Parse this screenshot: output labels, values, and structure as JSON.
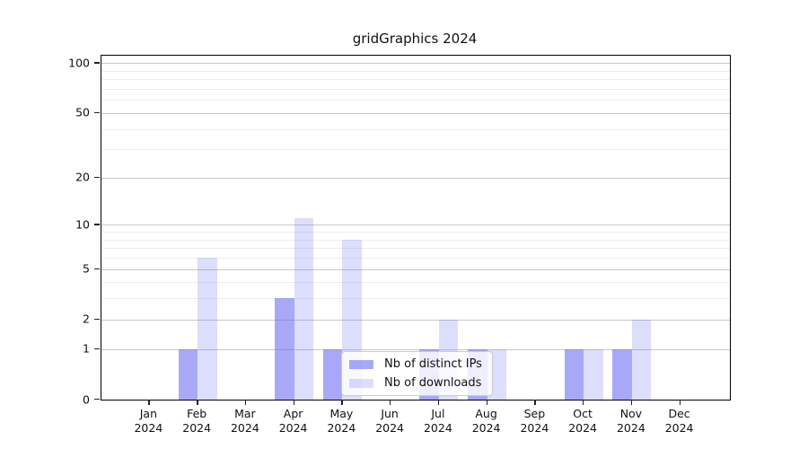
{
  "title": "gridGraphics 2024",
  "chart_data": {
    "type": "bar",
    "title": "gridGraphics 2024",
    "categories": [
      "Jan 2024",
      "Feb 2024",
      "Mar 2024",
      "Apr 2024",
      "May 2024",
      "Jun 2024",
      "Jul 2024",
      "Aug 2024",
      "Sep 2024",
      "Oct 2024",
      "Nov 2024",
      "Dec 2024"
    ],
    "series": [
      {
        "name": "Nb of distinct IPs",
        "values": [
          0,
          1,
          0,
          3,
          1,
          0,
          1,
          1,
          0,
          1,
          1,
          0
        ],
        "color": "rgba(102,102,245,0.57)"
      },
      {
        "name": "Nb of downloads",
        "values": [
          0,
          6,
          0,
          11,
          8,
          0,
          2,
          1,
          0,
          1,
          2,
          0
        ],
        "color": "rgba(102,102,245,0.22)"
      }
    ],
    "xlabel": "",
    "ylabel": "",
    "y_scale": "log1p",
    "y_ticks": [
      0,
      1,
      2,
      5,
      10,
      20,
      50,
      100
    ],
    "y_minor_gridlines": [
      3,
      4,
      6,
      7,
      8,
      9,
      30,
      40,
      60,
      70,
      80,
      90
    ],
    "ylim": [
      0,
      111
    ],
    "grid": "horizontal",
    "legend_position": "lower-center-inside",
    "bar_mode": "grouped"
  },
  "colors": {
    "spine": "#000000",
    "major_grid": "#c9c9c9",
    "minor_grid": "#ededed",
    "series_dark": "rgba(102,102,245,0.57)",
    "series_light": "rgba(102,102,245,0.22)"
  },
  "legend": {
    "items": [
      {
        "label": "Nb of distinct IPs",
        "color": "rgba(102,102,245,0.57)"
      },
      {
        "label": "Nb of downloads",
        "color": "rgba(102,102,245,0.22)"
      }
    ]
  }
}
